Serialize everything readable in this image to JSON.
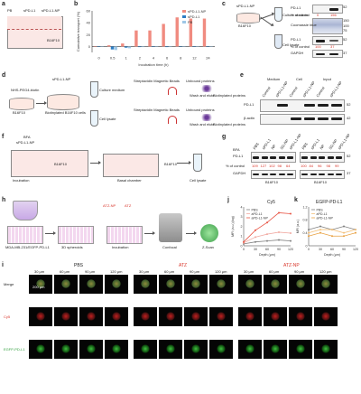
{
  "panels": {
    "a": {
      "letter": "a",
      "col_labels": [
        "PB",
        "sPD-L1",
        "sPD-L1-NP"
      ],
      "cell_label": "B16F10"
    },
    "b": {
      "letter": "b"
    },
    "c": {
      "letter": "c",
      "top_label": "sPD-L1-NP",
      "cell_label": "B16F10",
      "medium_label": "Culture medium",
      "lysate_label": "Cell lysate",
      "blot1_label": "PD-L1",
      "pct_label": "% of control",
      "pct_top": [
        "0",
        "156"
      ],
      "stain_label": "Coomassie blue",
      "blot2_label": "PD-L1",
      "pct_bottom": [
        "100",
        "37"
      ],
      "gapdh_label": "GAPDH",
      "mw_top": [
        "52",
        "42"
      ],
      "mw_stain": [
        "150",
        "100",
        "75"
      ],
      "mw_bottom": [
        "52",
        "37"
      ]
    },
    "d": {
      "letter": "d",
      "reagent": "NHS-PEG4-biotin",
      "np": "sPD-L1-NP",
      "cells": "B16F10",
      "biotin": "Biotinylated B16F10 cells",
      "medium": "Culture medium",
      "lysate": "Cell lysate",
      "beads": "Streptavidin Magnetic Beads",
      "unbound": "Unbound proteins",
      "wash": "Wash and elute",
      "biotinylated": "Biotinylated proteins"
    },
    "e": {
      "letter": "e",
      "groups": [
        "Medium",
        "Cell",
        "Input"
      ],
      "lanes": [
        "Control",
        "sPD-L1-NP",
        "Control",
        "sPD-L1-NP",
        "Control",
        "sPD-L1-NP"
      ],
      "rows": [
        "PD-L1",
        "β-actin"
      ],
      "mw": [
        "52",
        "42"
      ]
    },
    "f": {
      "letter": "f",
      "treat": "sPD-L1-NP",
      "bfa": "BFA",
      "cells": "B16F10",
      "incubation": "Incubation",
      "basal": "Basal chamber",
      "cells2": "B16F10",
      "lysate": "Cell lysate"
    },
    "g": {
      "letter": "g",
      "bfa": "BFA",
      "lanes": [
        "PBS",
        "sPD-L1",
        "NP",
        "SG-NP",
        "sPD-L1-NP",
        "PBS",
        "sPD-L1",
        "NP",
        "SG-NP",
        "sPD-L1-NP"
      ],
      "pd_l1": "PD-L1",
      "pct_label": "% of control",
      "gapdh": "GAPDH",
      "footer": [
        "B16F10",
        "B16F10"
      ],
      "pct_left": [
        "109",
        "127",
        "102",
        "98",
        "64"
      ],
      "pct_right": [
        "100",
        "84",
        "96",
        "98",
        "99"
      ],
      "mw": [
        "52",
        "37"
      ]
    },
    "h": {
      "letter": "h",
      "cells": "MDA-MB-231/EGFP-PD-L1",
      "spheroids": "3D spheroids",
      "drugs": [
        "ATZ-NP",
        "ATZ"
      ],
      "incubation": "Incubation",
      "confocal": "Confocal",
      "zscan": "Z-Scan"
    },
    "i": {
      "letter": "i",
      "groups": [
        "PBS",
        "ATZ",
        "ATZ-NP"
      ],
      "depths": [
        "30 μm",
        "60 μm",
        "90 μm",
        "120 μm"
      ],
      "rows": [
        "Merge",
        "Cy5",
        "EGFP-PD-L1"
      ],
      "scale": "200 μm"
    },
    "j": {
      "letter": "j",
      "title": "Cy5"
    },
    "k": {
      "letter": "k",
      "title": "EGFP-PD-L1"
    }
  },
  "chart_data": [
    {
      "type": "bar",
      "ylabel": "Cumulative transport (%)",
      "xlabel": "Incubation time (h)",
      "categories": [
        "0",
        "0.5",
        "1",
        "2",
        "4",
        "6",
        "8",
        "12",
        "24"
      ],
      "ylim": [
        -10,
        60
      ],
      "yticks": [
        0,
        20,
        40,
        60
      ],
      "legend": "top-right",
      "series": [
        {
          "name": "sPD-L1-NP",
          "color": "#f08b80",
          "values": [
            0,
            2,
            5,
            27,
            27,
            38,
            49,
            47,
            47
          ]
        },
        {
          "name": "sPD-L1",
          "color": "#2d7ec4",
          "values": [
            0,
            -5,
            -2,
            -1,
            0,
            -1,
            0,
            0,
            0
          ]
        },
        {
          "name": "PB",
          "color": "#9ec7e6",
          "values": [
            0,
            -6,
            -3,
            -1,
            0,
            -1,
            0,
            0,
            0
          ]
        }
      ]
    },
    {
      "type": "line",
      "title": "Cy5",
      "ylabel": "MFI (a.u.)(log)",
      "xlabel": "Depth (μm)",
      "x": [
        0,
        30,
        60,
        90,
        120
      ],
      "ylim": [
        0,
        4
      ],
      "yticks": [
        0,
        1,
        2,
        3,
        4
      ],
      "xticks": [
        0,
        30,
        60,
        90,
        120
      ],
      "legend": "top-left",
      "series": [
        {
          "name": "PBS",
          "color": "#808080",
          "values": [
            0.2,
            0.4,
            0.5,
            0.6,
            0.5
          ]
        },
        {
          "name": "aPD-L1",
          "color": "#f1a8a0",
          "values": [
            0.3,
            0.9,
            1.2,
            1.4,
            1.3
          ]
        },
        {
          "name": "aPD-L1-NP",
          "color": "#e85545",
          "values": [
            0.4,
            1.6,
            2.4,
            3.4,
            3.3
          ]
        }
      ]
    },
    {
      "type": "line",
      "title": "EGFP-PD-L1",
      "ylabel": "MFI (a.u.)",
      "xlabel": "Depth (μm)",
      "x": [
        0,
        30,
        60,
        90,
        120
      ],
      "ylim": [
        0,
        1.2
      ],
      "yticks": [
        0,
        0.4,
        0.8,
        1.2
      ],
      "xticks": [
        0,
        30,
        60,
        90,
        120
      ],
      "legend": "top-left",
      "series": [
        {
          "name": "PBS",
          "color": "#808080",
          "values": [
            0.5,
            0.6,
            0.5,
            0.6,
            0.5
          ]
        },
        {
          "name": "aPD-L1",
          "color": "#f3c07a",
          "values": [
            0.4,
            0.5,
            0.5,
            0.4,
            0.5
          ]
        },
        {
          "name": "aPD-L1-NP",
          "color": "#e8a040",
          "values": [
            0.3,
            0.4,
            0.3,
            0.3,
            0.4
          ]
        }
      ]
    }
  ]
}
